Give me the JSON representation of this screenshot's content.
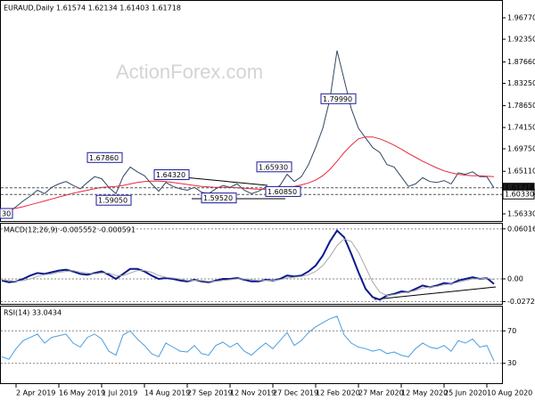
{
  "chart_data": [
    {
      "type": "line",
      "title": "EURAUD,Daily  1.61574 1.62134 1.61403 1.61718",
      "watermark": "ActionForex.com",
      "categories": [
        null,
        null,
        "2 Apr 2019",
        null,
        null,
        null,
        null,
        null,
        "16 May 2019",
        null,
        null,
        null,
        null,
        null,
        "1 Jul 2019",
        null,
        null,
        null,
        null,
        null,
        "14 Aug 2019",
        null,
        null,
        null,
        null,
        null,
        "27 Sep 2019",
        null,
        null,
        null,
        null,
        null,
        "12 Nov 2019",
        null,
        null,
        null,
        null,
        null,
        "27 Dec 2019",
        null,
        null,
        null,
        null,
        null,
        "12 Feb 2020",
        null,
        null,
        null,
        null,
        null,
        "27 Mar 2020",
        null,
        null,
        null,
        null,
        null,
        "12 May 2020",
        null,
        null,
        null,
        null,
        null,
        "25 Jun 2020",
        null,
        null,
        null,
        null,
        null,
        "10 Aug 2020",
        null
      ],
      "series": [
        {
          "color": "#2f4763",
          "values": [
            1.572,
            1.568,
            1.578,
            1.59,
            1.6,
            1.612,
            1.605,
            1.618,
            1.625,
            1.63,
            1.622,
            1.615,
            1.628,
            1.64,
            1.636,
            1.618,
            1.605,
            1.64,
            1.66,
            1.65,
            1.642,
            1.625,
            1.61,
            1.628,
            1.62,
            1.615,
            1.612,
            1.618,
            1.608,
            1.605,
            1.615,
            1.622,
            1.618,
            1.625,
            1.612,
            1.605,
            1.61,
            1.618,
            1.612,
            1.622,
            1.645,
            1.63,
            1.64,
            1.665,
            1.7,
            1.74,
            1.8,
            1.9,
            1.84,
            1.78,
            1.74,
            1.72,
            1.7,
            1.69,
            1.665,
            1.66,
            1.64,
            1.62,
            1.625,
            1.638,
            1.63,
            1.628,
            1.632,
            1.625,
            1.648,
            1.645,
            1.65,
            1.64,
            1.64,
            1.617
          ]
        },
        {
          "color": "#e8283c",
          "values": [
            1.57,
            1.572,
            1.575,
            1.578,
            1.582,
            1.586,
            1.59,
            1.594,
            1.598,
            1.602,
            1.606,
            1.609,
            1.612,
            1.615,
            1.618,
            1.619,
            1.62,
            1.622,
            1.625,
            1.628,
            1.63,
            1.631,
            1.631,
            1.63,
            1.628,
            1.626,
            1.624,
            1.622,
            1.62,
            1.619,
            1.618,
            1.618,
            1.618,
            1.617,
            1.616,
            1.615,
            1.614,
            1.614,
            1.614,
            1.615,
            1.617,
            1.62,
            1.623,
            1.627,
            1.633,
            1.642,
            1.655,
            1.672,
            1.69,
            1.705,
            1.718,
            1.722,
            1.722,
            1.718,
            1.712,
            1.705,
            1.697,
            1.688,
            1.68,
            1.672,
            1.665,
            1.658,
            1.652,
            1.648,
            1.645,
            1.643,
            1.642,
            1.642,
            1.641,
            1.64
          ]
        }
      ],
      "ylim": [
        1.5486,
        2.0008
      ],
      "yticks": [
        {
          "value": 1.5633,
          "label": "1.56330"
        },
        {
          "value": 1.6073,
          "label": "1.60730"
        },
        {
          "value": 1.6511,
          "label": "1.65110"
        },
        {
          "value": 1.6975,
          "label": "1.69750"
        },
        {
          "value": 1.7415,
          "label": "1.74150"
        },
        {
          "value": 1.7865,
          "label": "1.78650"
        },
        {
          "value": 1.8325,
          "label": "1.83250"
        },
        {
          "value": 1.8766,
          "label": "1.87660"
        },
        {
          "value": 1.9235,
          "label": "1.92350"
        },
        {
          "value": 1.9677,
          "label": "1.96770"
        }
      ],
      "annotations": [
        {
          "value": 1.7999,
          "label": "1.79990"
        },
        {
          "value": 1.6786,
          "label": "1.67860"
        },
        {
          "value": 1.6432,
          "label": "1.64320"
        },
        {
          "value": 1.5905,
          "label": "1.59050"
        },
        {
          "value": 1.5952,
          "label": "1.59520"
        },
        {
          "value": 1.6085,
          "label": "1.60850"
        },
        {
          "value": 1.6593,
          "label": "1.65930"
        },
        {
          "label": "30"
        }
      ],
      "price_markers": [
        {
          "value": 1.61718,
          "label": "1.61718"
        },
        {
          "value": 1.6033,
          "label": "1.60330"
        }
      ],
      "grid": false
    },
    {
      "type": "line",
      "title": "MACD(12,26,9) -0.005552 -0.000591",
      "series": [
        {
          "color": "#0b1a8c",
          "values": [
            -0.002,
            -0.004,
            -0.003,
            0.0,
            0.004,
            0.007,
            0.006,
            0.008,
            0.01,
            0.011,
            0.009,
            0.006,
            0.005,
            0.007,
            0.009,
            0.005,
            0.0,
            0.006,
            0.012,
            0.012,
            0.009,
            0.004,
            0.0,
            0.001,
            0.0,
            -0.002,
            -0.003,
            -0.001,
            -0.003,
            -0.004,
            -0.002,
            0.0,
            0.0,
            0.001,
            -0.001,
            -0.003,
            -0.003,
            -0.001,
            -0.002,
            0.0,
            0.004,
            0.003,
            0.004,
            0.009,
            0.016,
            0.028,
            0.045,
            0.058,
            0.05,
            0.03,
            0.008,
            -0.012,
            -0.022,
            -0.025,
            -0.02,
            -0.018,
            -0.015,
            -0.016,
            -0.012,
            -0.008,
            -0.01,
            -0.008,
            -0.005,
            -0.006,
            -0.002,
            0.0,
            0.002,
            0.0,
            0.001,
            -0.006
          ]
        },
        {
          "color": "#a9a9a9",
          "values": [
            -0.001,
            -0.002,
            -0.003,
            -0.002,
            0.0,
            0.003,
            0.005,
            0.006,
            0.008,
            0.009,
            0.01,
            0.008,
            0.007,
            0.006,
            0.007,
            0.007,
            0.004,
            0.004,
            0.007,
            0.01,
            0.01,
            0.008,
            0.004,
            0.002,
            0.001,
            0.0,
            -0.002,
            -0.002,
            -0.002,
            -0.003,
            -0.003,
            -0.002,
            -0.001,
            0.0,
            0.0,
            -0.001,
            -0.002,
            -0.002,
            -0.002,
            -0.001,
            0.001,
            0.002,
            0.003,
            0.005,
            0.009,
            0.016,
            0.027,
            0.04,
            0.048,
            0.045,
            0.032,
            0.014,
            -0.004,
            -0.016,
            -0.02,
            -0.019,
            -0.017,
            -0.016,
            -0.014,
            -0.011,
            -0.01,
            -0.009,
            -0.007,
            -0.006,
            -0.004,
            -0.002,
            0.0,
            0.0,
            0.001,
            -0.001
          ]
        }
      ],
      "ylim": [
        -0.0311,
        0.0664
      ],
      "yticks": [
        -0.02725,
        {
          "value": 0,
          "label": "0.00"
        },
        0.060165
      ],
      "grid": true
    },
    {
      "type": "line",
      "title": "RSI(14) 33.0434",
      "series": [
        {
          "color": "#4a9ee0",
          "values": [
            38,
            35,
            48,
            58,
            62,
            66,
            55,
            62,
            64,
            66,
            55,
            50,
            62,
            66,
            60,
            45,
            40,
            65,
            70,
            60,
            52,
            42,
            38,
            55,
            50,
            45,
            44,
            52,
            42,
            40,
            52,
            56,
            50,
            55,
            45,
            40,
            48,
            55,
            48,
            58,
            68,
            52,
            58,
            68,
            75,
            80,
            85,
            88,
            65,
            55,
            50,
            48,
            45,
            47,
            42,
            44,
            40,
            38,
            48,
            55,
            50,
            48,
            52,
            45,
            58,
            55,
            60,
            50,
            52,
            33
          ]
        }
      ],
      "ylim": [
        4.4,
        100
      ],
      "yticks": [
        30,
        70
      ],
      "grid": true
    }
  ]
}
